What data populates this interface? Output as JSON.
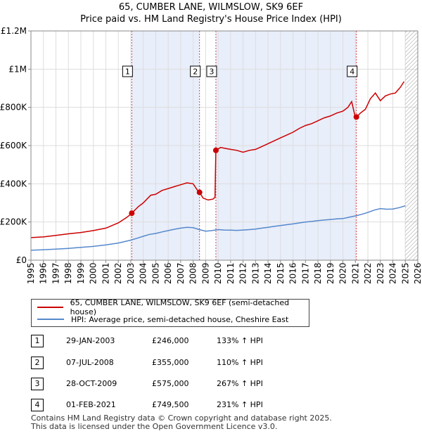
{
  "title_line1": "65, CUMBER LANE, WILMSLOW, SK9 6EF",
  "title_line2": "Price paid vs. HM Land Registry's House Price Index (HPI)",
  "colors": {
    "property": "#cc0000",
    "hpi": "#5588cc",
    "shade": "#e8eefa",
    "vline": "#dd4444",
    "grid": "#dddddd"
  },
  "legend": {
    "property_label": "65, CUMBER LANE, WILMSLOW, SK9 6EF (semi-detached house)",
    "hpi_label": "HPI: Average price, semi-detached house, Cheshire East"
  },
  "transactions": [
    {
      "num": "1",
      "date": "29-JAN-2003",
      "price": "£246,000",
      "pct": "133% ↑ HPI"
    },
    {
      "num": "2",
      "date": "07-JUL-2008",
      "price": "£355,000",
      "pct": "110% ↑ HPI"
    },
    {
      "num": "3",
      "date": "28-OCT-2009",
      "price": "£575,000",
      "pct": "267% ↑ HPI"
    },
    {
      "num": "4",
      "date": "01-FEB-2021",
      "price": "£749,500",
      "pct": "231% ↑ HPI"
    }
  ],
  "footer_line1": "Contains HM Land Registry data © Crown copyright and database right 2025.",
  "footer_line2": "This data is licensed under the Open Government Licence v3.0.",
  "chart_data": {
    "type": "line",
    "title": "Price paid vs. HM Land Registry's House Price Index (HPI)",
    "xlim": [
      1995,
      2026
    ],
    "ylim": [
      0,
      1200000
    ],
    "x_ticks": [
      1995,
      1996,
      1997,
      1998,
      1999,
      2000,
      2001,
      2002,
      2003,
      2004,
      2005,
      2006,
      2007,
      2008,
      2009,
      2010,
      2011,
      2012,
      2013,
      2014,
      2015,
      2016,
      2017,
      2018,
      2019,
      2020,
      2021,
      2022,
      2023,
      2024,
      2025,
      2026
    ],
    "y_ticks": [
      {
        "value": 0,
        "label": "£0"
      },
      {
        "value": 200000,
        "label": "£200K"
      },
      {
        "value": 400000,
        "label": "£400K"
      },
      {
        "value": 600000,
        "label": "£600K"
      },
      {
        "value": 800000,
        "label": "£800K"
      },
      {
        "value": 1000000,
        "label": "£1M"
      },
      {
        "value": 1200000,
        "label": "£1.2M"
      }
    ],
    "shaded_regions": [
      {
        "from": 2003.08,
        "to": 2008.51
      },
      {
        "from": 2009.82,
        "to": 2021.08
      }
    ],
    "forecast_start": 2025.0,
    "markers": [
      {
        "num": "1",
        "x": 2003.08,
        "y": 246000
      },
      {
        "num": "2",
        "x": 2008.51,
        "y": 355000
      },
      {
        "num": "3",
        "x": 2009.82,
        "y": 575000
      },
      {
        "num": "4",
        "x": 2021.08,
        "y": 749500
      }
    ],
    "series": [
      {
        "name": "65, CUMBER LANE, WILMSLOW, SK9 6EF (semi-detached house)",
        "x": [
          1995,
          1996,
          1997,
          1998,
          1999,
          2000,
          2001,
          2002,
          2002.7,
          2003.08,
          2003.6,
          2004,
          2004.6,
          2005,
          2005.5,
          2006,
          2006.5,
          2007,
          2007.5,
          2008,
          2008.3,
          2008.51,
          2008.8,
          2009.2,
          2009.6,
          2009.75,
          2009.82,
          2010.2,
          2010.6,
          2011,
          2011.5,
          2012,
          2012.5,
          2013,
          2013.5,
          2014,
          2014.5,
          2015,
          2015.5,
          2016,
          2016.5,
          2017,
          2017.5,
          2018,
          2018.5,
          2019,
          2019.5,
          2020,
          2020.4,
          2020.7,
          2020.95,
          2021.08,
          2021.4,
          2021.8,
          2022.2,
          2022.6,
          2023,
          2023.4,
          2023.8,
          2024.2,
          2024.6,
          2024.9
        ],
        "y": [
          118000,
          122000,
          130000,
          138000,
          145000,
          155000,
          168000,
          195000,
          225000,
          246000,
          280000,
          300000,
          340000,
          345000,
          365000,
          375000,
          385000,
          395000,
          405000,
          400000,
          370000,
          355000,
          325000,
          315000,
          320000,
          330000,
          575000,
          590000,
          585000,
          580000,
          575000,
          565000,
          575000,
          580000,
          595000,
          610000,
          625000,
          640000,
          655000,
          670000,
          690000,
          705000,
          715000,
          730000,
          745000,
          755000,
          770000,
          780000,
          800000,
          830000,
          760000,
          749500,
          770000,
          790000,
          845000,
          875000,
          835000,
          860000,
          870000,
          875000,
          905000,
          935000
        ]
      },
      {
        "name": "HPI: Average price, semi-detached house, Cheshire East",
        "x": [
          1995,
          1996,
          1997,
          1998,
          1999,
          2000,
          2001,
          2002,
          2003,
          2003.5,
          2004,
          2004.5,
          2005,
          2005.5,
          2006,
          2006.5,
          2007,
          2007.5,
          2008,
          2008.5,
          2009,
          2009.5,
          2010,
          2010.5,
          2011,
          2011.5,
          2012,
          2012.5,
          2013,
          2013.5,
          2014,
          2014.5,
          2015,
          2015.5,
          2016,
          2016.5,
          2017,
          2017.5,
          2018,
          2018.5,
          2019,
          2019.5,
          2020,
          2020.5,
          2021,
          2021.5,
          2022,
          2022.5,
          2023,
          2023.5,
          2024,
          2024.5,
          2025
        ],
        "y": [
          52000,
          55000,
          58000,
          62000,
          67000,
          72000,
          80000,
          90000,
          105000,
          115000,
          125000,
          135000,
          140000,
          148000,
          155000,
          162000,
          168000,
          172000,
          170000,
          160000,
          152000,
          155000,
          160000,
          158000,
          157000,
          156000,
          158000,
          160000,
          163000,
          168000,
          172000,
          177000,
          181000,
          186000,
          190000,
          195000,
          200000,
          203000,
          207000,
          210000,
          213000,
          216000,
          218000,
          225000,
          232000,
          240000,
          250000,
          262000,
          270000,
          267000,
          268000,
          275000,
          285000
        ]
      }
    ]
  }
}
